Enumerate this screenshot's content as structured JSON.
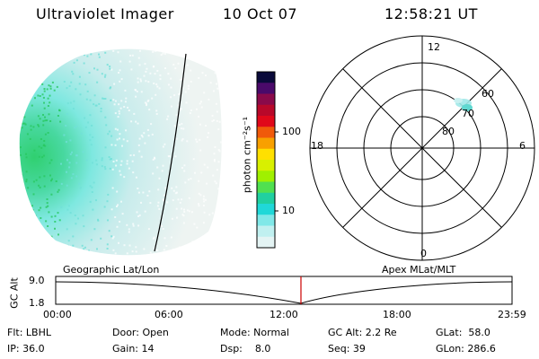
{
  "header": {
    "title": "Ultraviolet Imager",
    "date": "10 Oct 07",
    "time": "12:58:21 UT"
  },
  "colorbar": {
    "unit_label": "photon cm⁻²s⁻¹",
    "ticks": [
      "100",
      "10"
    ],
    "colors": [
      "#0a0a3a",
      "#4a0a6a",
      "#8a0a4a",
      "#b8082a",
      "#e0081a",
      "#f05a0a",
      "#f8a000",
      "#ffe000",
      "#d8f000",
      "#a0f000",
      "#50e050",
      "#20d0a0",
      "#20d8d8",
      "#80e8e8",
      "#c0f0f0",
      "#e4f4f4"
    ]
  },
  "polar_plot": {
    "mlt_labels": {
      "top": "12",
      "left": "18",
      "right": "6",
      "bottom": "0"
    },
    "lat_labels": [
      "60",
      "70",
      "80"
    ]
  },
  "timeline": {
    "left_header": "Geographic Lat/Lon",
    "right_header": "Apex MLat/MLT",
    "axis_label": "GC Alt",
    "y_ticks": [
      "9.0",
      "1.8"
    ],
    "x_ticks": [
      "00:00",
      "06:00",
      "12:00",
      "18:00",
      "23:59"
    ],
    "marker_color": "#cc0000"
  },
  "info": {
    "flt": "Flt: LBHL",
    "ip": "IP: 36.0",
    "door": "Door: Open",
    "gain": "Gain: 14",
    "mode": "Mode: Normal",
    "dsp": "Dsp:    8.0",
    "gc_alt": "GC Alt: 2.2 Re",
    "seq": "Seq: 39",
    "glat": "GLat:  58.0",
    "glon": "GLon: 286.6"
  }
}
